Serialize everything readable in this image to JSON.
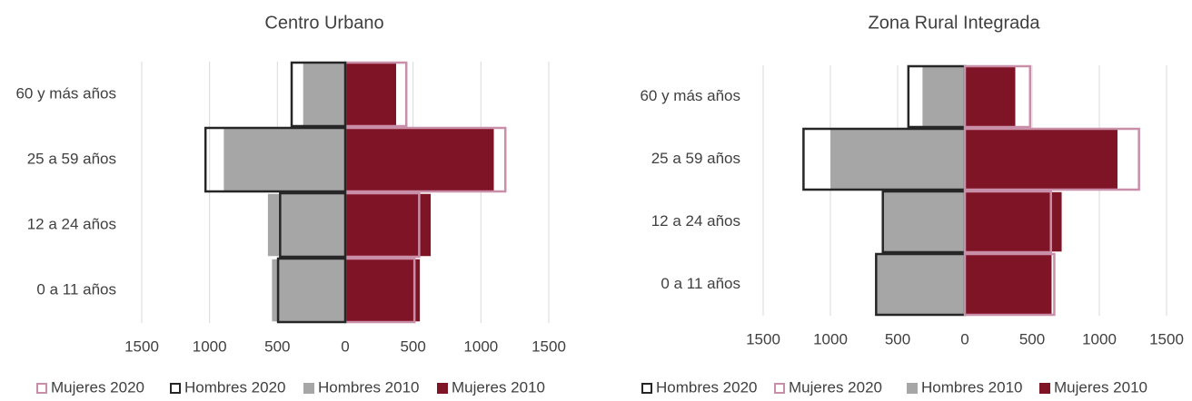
{
  "chart_data": [
    {
      "type": "pyramid",
      "title": "Centro Urbano",
      "categories": [
        "60 y más años",
        "25 a 59 años",
        "12 a 24 años",
        "0 a 11 años"
      ],
      "series": [
        {
          "name": "Mujeres 2020",
          "color": "#c98fa8",
          "outline": true,
          "values": [
            450,
            1180,
            545,
            510
          ]
        },
        {
          "name": "Hombres 2020",
          "color": "#262626",
          "outline": true,
          "values": [
            -395,
            -1030,
            -480,
            -495
          ]
        },
        {
          "name": "Hombres 2010",
          "color": "#a6a6a6",
          "outline": false,
          "values": [
            -315,
            -900,
            -575,
            -545
          ]
        },
        {
          "name": "Mujeres 2010",
          "color": "#7f1426",
          "outline": false,
          "values": [
            380,
            1100,
            635,
            555
          ]
        }
      ],
      "xlim": [
        -1500,
        1500
      ],
      "xticks": [
        {
          "value": -1500,
          "label": "1500"
        },
        {
          "value": -1000,
          "label": "1000"
        },
        {
          "value": -500,
          "label": "500"
        },
        0,
        500,
        1000,
        1500
      ],
      "grid": true
    },
    {
      "type": "pyramid",
      "title": "Zona Rural Integrada",
      "categories": [
        "60 y más años",
        "25 a 59 años",
        "12 a 24 años",
        "0 a 11 años"
      ],
      "series": [
        {
          "name": "Hombres 2020",
          "color": "#262626",
          "outline": true,
          "values": [
            -420,
            -1200,
            -610,
            -660
          ]
        },
        {
          "name": "Mujeres 2020",
          "color": "#c98fa8",
          "outline": true,
          "values": [
            485,
            1295,
            640,
            665
          ]
        },
        {
          "name": "Hombres 2010",
          "color": "#a6a6a6",
          "outline": false,
          "values": [
            -320,
            -1005,
            -610,
            -660
          ]
        },
        {
          "name": "Mujeres 2010",
          "color": "#7f1426",
          "outline": false,
          "values": [
            380,
            1140,
            725,
            650
          ]
        }
      ],
      "xlim": [
        -1500,
        1500
      ],
      "xticks": [
        {
          "value": -1500,
          "label": "1500"
        },
        {
          "value": -1000,
          "label": "1000"
        },
        {
          "value": -500,
          "label": "500"
        },
        0,
        500,
        1000,
        1500
      ],
      "grid": true
    }
  ]
}
